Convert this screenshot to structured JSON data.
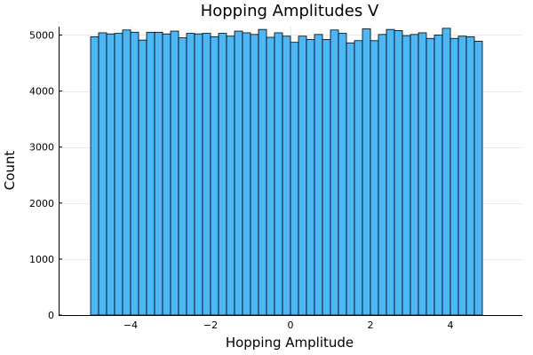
{
  "chart_data": {
    "type": "bar",
    "title": "Hopping Amplitudes V",
    "xlabel": "Hopping Amplitude",
    "ylabel": "Count",
    "xlim": [
      -5.8,
      5.8
    ],
    "ylim": [
      0,
      5150
    ],
    "xticks": [
      -4,
      -2,
      0,
      2,
      4
    ],
    "xtick_labels": [
      "−4",
      "−2",
      "0",
      "2",
      "4"
    ],
    "yticks": [
      0,
      1000,
      2000,
      3000,
      4000,
      5000
    ],
    "ytick_labels": [
      "0",
      "1000",
      "2000",
      "3000",
      "4000",
      "5000"
    ],
    "grid": true,
    "legend": false,
    "bar_color": "#4db6f5",
    "bin_start": -5.0,
    "bin_width": 0.2,
    "values": [
      4970,
      5040,
      5020,
      5030,
      5090,
      5050,
      4910,
      5050,
      5050,
      5020,
      5070,
      4950,
      5030,
      5020,
      5030,
      4970,
      5030,
      4980,
      5070,
      5040,
      5010,
      5100,
      4960,
      5040,
      4980,
      4870,
      4980,
      4920,
      5010,
      4920,
      5090,
      5030,
      4860,
      4900,
      5110,
      4900,
      5010,
      5100,
      5080,
      4990,
      5010,
      5040,
      4940,
      5000,
      5120,
      4940,
      4980,
      4970,
      4890
    ]
  }
}
